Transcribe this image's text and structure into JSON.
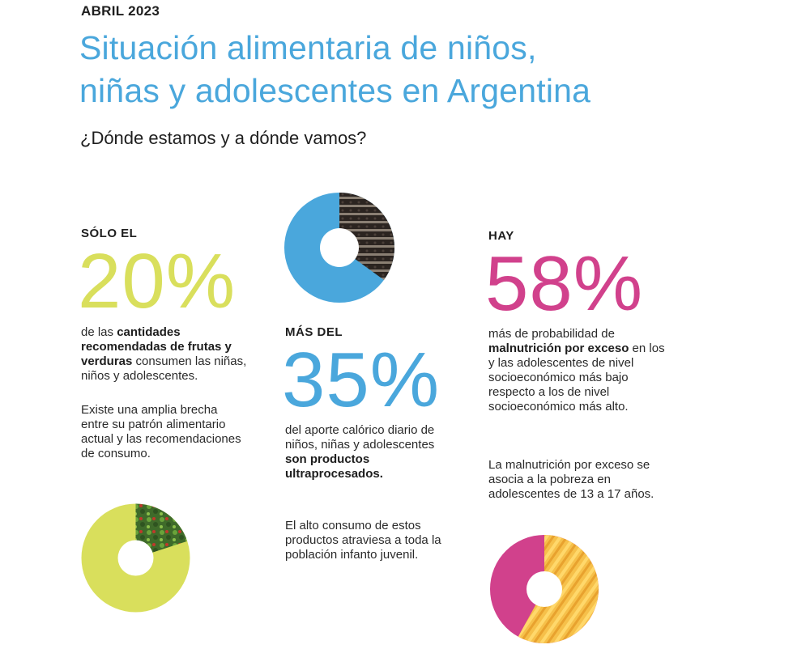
{
  "header": {
    "date": "ABRIL 2023",
    "title_line1": "Situación alimentaria de niños,",
    "title_line2": "niñas y adolescentes en Argentina",
    "subtitle": "¿Dónde estamos y a dónde vamos?"
  },
  "stat_fruits": {
    "kicker": "SÓLO EL",
    "value": "20%",
    "desc_pre": "de las ",
    "desc_bold": "cantidades recomendadas de frutas y verduras",
    "desc_post": " consumen las niñas, niños y adolescentes.",
    "note": "Existe una amplia brecha entre su patrón alimentario actual y las recomendaciones de consumo.",
    "donut_fraction": 0.2,
    "color": "#d9df5c"
  },
  "stat_ultraprocessed": {
    "kicker": "MÁS DEL",
    "value": "35%",
    "desc_pre": "del aporte calórico diario de niños, niñas y adolescentes ",
    "desc_bold": "son productos ultraprocesados.",
    "desc_post": "",
    "note": "El alto consumo de estos productos atraviesa a toda la población infanto juvenil.",
    "donut_fraction": 0.35,
    "color": "#4aa7dc"
  },
  "stat_malnutrition": {
    "kicker": "HAY",
    "value": "58%",
    "desc_pre": "más de probabilidad de ",
    "desc_bold": "malnutrición por exceso",
    "desc_post": " en los y las adolescentes de nivel socioeconómico más bajo respecto a los de nivel socioeconómico más alto.",
    "note": "La malnutrición por exceso se asocia a la pobreza en adolescentes de 13 a 17 años.",
    "donut_fraction": 0.58,
    "color": "#d1418c"
  }
}
